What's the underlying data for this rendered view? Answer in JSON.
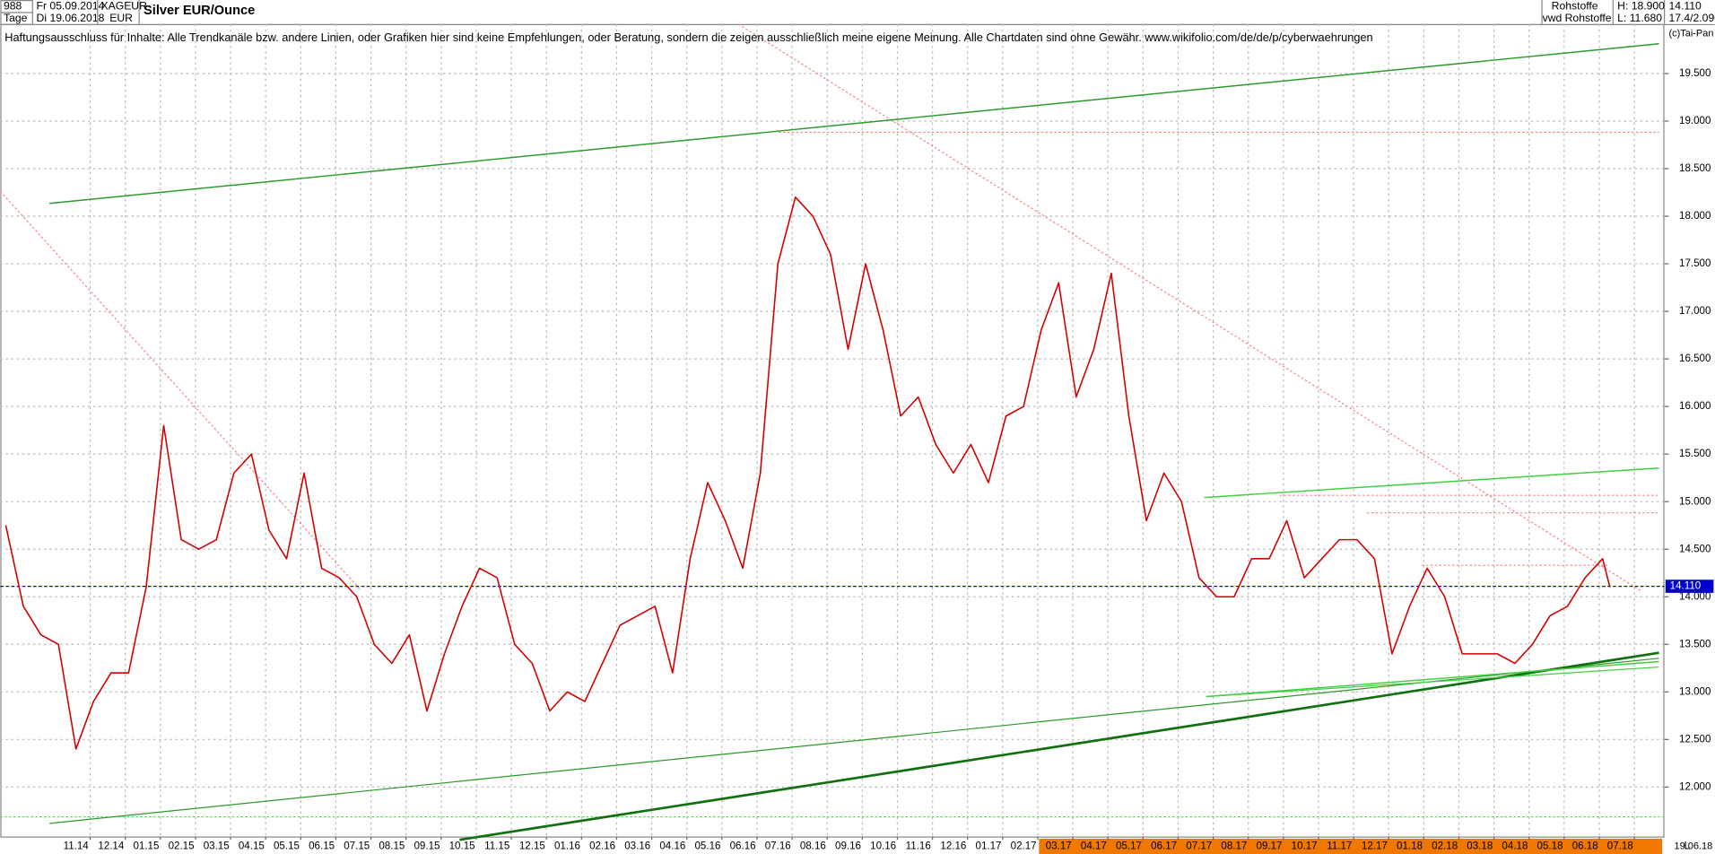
{
  "header": {
    "code": "988",
    "period": "Tage",
    "date_from": "Fr 05.09.2014",
    "date_to": "Di 19.06.2018",
    "symbol": "XAGEUR",
    "currency": "EUR",
    "group": "Rohstoffe",
    "source": "vwd Rohstoffe",
    "high": "H: 18.900",
    "low": "L: 11.680",
    "last": "14.110",
    "change": "17.4/2.090",
    "copyright": "(c)Tai-Pan",
    "disclaimer": "Haftungsausschluss für Inhalte: Alle Trendkanäle bzw. andere Linien, oder Grafiken hier sind keine Empfehlungen, oder Beratung, sondern die zeigen ausschließlich meine eigene Meinung. Alle Chartdaten sind ohne Gewähr.  www.wikifolio.com/de/de/p/cyberwaehrungen",
    "footer_flag": "L",
    "footer_date": "19.06.18"
  },
  "chart_data": {
    "type": "line",
    "title": "Silver EUR/Ounce",
    "x": [
      0,
      0.5,
      1,
      1.5,
      2,
      2.5,
      3,
      3.5,
      4,
      4.5,
      5,
      5.5,
      6,
      6.5,
      7,
      7.5,
      8,
      8.5,
      9,
      9.5,
      10,
      10.5,
      11,
      11.5,
      12,
      12.5,
      13,
      13.5,
      14,
      14.5,
      15,
      15.5,
      16,
      16.5,
      17,
      17.5,
      18,
      18.5,
      19,
      19.5,
      20,
      20.5,
      21,
      21.5,
      22,
      22.5,
      23,
      23.5,
      24,
      24.5,
      25,
      25.5,
      26,
      26.5,
      27,
      27.5,
      28,
      28.5,
      29,
      29.5,
      30,
      30.5,
      31,
      31.5,
      32,
      32.5,
      33,
      33.5,
      34,
      34.5,
      35,
      35.5,
      36,
      36.5,
      37,
      37.5,
      38,
      38.5,
      39,
      39.5,
      40,
      40.5,
      41,
      41.5,
      42,
      42.5,
      43,
      43.5,
      44,
      44.5,
      45,
      45.5,
      45.7
    ],
    "series": [
      {
        "name": "XAGEUR",
        "color": "#d40000",
        "values": [
          14.75,
          13.9,
          13.6,
          13.5,
          12.4,
          12.9,
          13.2,
          13.2,
          14.1,
          15.8,
          14.6,
          14.5,
          14.6,
          15.3,
          15.5,
          14.7,
          14.4,
          15.3,
          14.3,
          14.2,
          14.0,
          13.5,
          13.3,
          13.6,
          12.8,
          13.4,
          13.9,
          14.3,
          14.2,
          13.5,
          13.3,
          12.8,
          13.0,
          12.9,
          13.3,
          13.7,
          13.8,
          13.9,
          13.2,
          14.4,
          15.2,
          14.8,
          14.3,
          15.3,
          17.5,
          18.2,
          18.0,
          17.6,
          16.6,
          17.5,
          16.8,
          15.9,
          16.1,
          15.6,
          15.3,
          15.6,
          15.2,
          15.9,
          16.0,
          16.8,
          17.3,
          16.1,
          16.6,
          17.4,
          15.9,
          14.8,
          15.3,
          15.0,
          14.2,
          14.0,
          14.0,
          14.4,
          14.4,
          14.8,
          14.2,
          14.4,
          14.6,
          14.6,
          14.4,
          13.4,
          13.9,
          14.3,
          14.0,
          13.4,
          13.4,
          13.4,
          13.3,
          13.5,
          13.8,
          13.9,
          14.2,
          14.4,
          14.11
        ]
      }
    ],
    "xlim": [
      -0.156,
      47.26
    ],
    "xticks": [
      {
        "value": 2,
        "label": "11.14"
      },
      {
        "value": 3,
        "label": "12.14"
      },
      {
        "value": 4,
        "label": "01.15"
      },
      {
        "value": 5,
        "label": "02.15"
      },
      {
        "value": 6,
        "label": "03.15"
      },
      {
        "value": 7,
        "label": "04.15"
      },
      {
        "value": 8,
        "label": "05.15"
      },
      {
        "value": 9,
        "label": "06.15"
      },
      {
        "value": 10,
        "label": "07.15"
      },
      {
        "value": 11,
        "label": "08.15"
      },
      {
        "value": 12,
        "label": "09.15"
      },
      {
        "value": 13,
        "label": "10.15"
      },
      {
        "value": 14,
        "label": "11.15"
      },
      {
        "value": 15,
        "label": "12.15"
      },
      {
        "value": 16,
        "label": "01.16"
      },
      {
        "value": 17,
        "label": "02.16"
      },
      {
        "value": 18,
        "label": "03.16"
      },
      {
        "value": 19,
        "label": "04.16"
      },
      {
        "value": 20,
        "label": "05.16"
      },
      {
        "value": 21,
        "label": "06.16"
      },
      {
        "value": 22,
        "label": "07.16"
      },
      {
        "value": 23,
        "label": "08.16"
      },
      {
        "value": 24,
        "label": "09.16"
      },
      {
        "value": 25,
        "label": "10.16"
      },
      {
        "value": 26,
        "label": "11.16"
      },
      {
        "value": 27,
        "label": "12.16"
      },
      {
        "value": 28,
        "label": "01.17"
      },
      {
        "value": 29,
        "label": "02.17"
      },
      {
        "value": 30,
        "label": "03.17"
      },
      {
        "value": 31,
        "label": "04.17"
      },
      {
        "value": 32,
        "label": "05.17"
      },
      {
        "value": 33,
        "label": "06.17"
      },
      {
        "value": 34,
        "label": "07.17"
      },
      {
        "value": 35,
        "label": "08.17"
      },
      {
        "value": 36,
        "label": "09.17"
      },
      {
        "value": 37,
        "label": "10.17"
      },
      {
        "value": 38,
        "label": "11.17"
      },
      {
        "value": 39,
        "label": "12.17"
      },
      {
        "value": 40,
        "label": "01.18"
      },
      {
        "value": 41,
        "label": "02.18"
      },
      {
        "value": 42,
        "label": "03.18"
      },
      {
        "value": 43,
        "label": "04.18"
      },
      {
        "value": 44,
        "label": "05.18"
      },
      {
        "value": 45,
        "label": "06.18"
      },
      {
        "value": 46,
        "label": "07.18"
      }
    ],
    "ylim": [
      11.48,
      20.02
    ],
    "yticks": [
      {
        "value": 12,
        "label": "12.000"
      },
      {
        "value": 12.5,
        "label": "12.500"
      },
      {
        "value": 13,
        "label": "13.000"
      },
      {
        "value": 13.5,
        "label": "13.500"
      },
      {
        "value": 14,
        "label": "14.000"
      },
      {
        "value": 14.5,
        "label": "14.500"
      },
      {
        "value": 15,
        "label": "15.000"
      },
      {
        "value": 15.5,
        "label": "15.500"
      },
      {
        "value": 16,
        "label": "16.000"
      },
      {
        "value": 16.5,
        "label": "16.500"
      },
      {
        "value": 17,
        "label": "17.000"
      },
      {
        "value": 17.5,
        "label": "17.500"
      },
      {
        "value": 18,
        "label": "18.000"
      },
      {
        "value": 18.5,
        "label": "18.500"
      },
      {
        "value": 19,
        "label": "19.000"
      },
      {
        "value": 19.5,
        "label": "19.500"
      }
    ],
    "reference_line": {
      "value": 14.11,
      "label": "14.110",
      "color": "#0000cc"
    },
    "grid": true
  }
}
